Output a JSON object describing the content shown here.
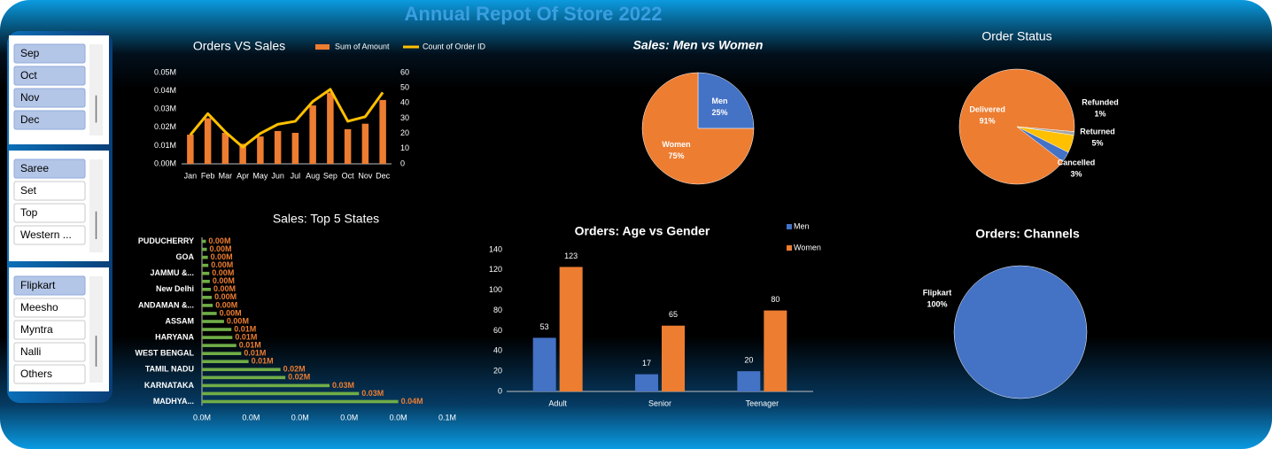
{
  "title": "Annual Repot Of  Store 2022",
  "slicers": [
    {
      "items": [
        {
          "label": "Sep",
          "selected": true
        },
        {
          "label": "Oct",
          "selected": true
        },
        {
          "label": "Nov",
          "selected": true
        },
        {
          "label": "Dec",
          "selected": true
        }
      ]
    },
    {
      "items": [
        {
          "label": "Saree",
          "selected": true
        },
        {
          "label": "Set",
          "selected": false
        },
        {
          "label": "Top",
          "selected": false
        },
        {
          "label": "Western ...",
          "selected": false
        }
      ]
    },
    {
      "items": [
        {
          "label": "Flipkart",
          "selected": true
        },
        {
          "label": "Meesho",
          "selected": false
        },
        {
          "label": "Myntra",
          "selected": false
        },
        {
          "label": "Nalli",
          "selected": false
        },
        {
          "label": "Others",
          "selected": false
        }
      ]
    }
  ],
  "chart_data": [
    {
      "type": "combo",
      "title": "Orders VS Sales",
      "categories": [
        "Jan",
        "Feb",
        "Mar",
        "Apr",
        "May",
        "Jun",
        "Jul",
        "Aug",
        "Sep",
        "Oct",
        "Nov",
        "Dec"
      ],
      "series": [
        {
          "name": "Sum of Amount",
          "type": "bar",
          "color": "#ed7d31",
          "values": [
            16000,
            25000,
            17000,
            11000,
            15000,
            18000,
            17000,
            32000,
            39000,
            19000,
            22000,
            35000
          ]
        },
        {
          "name": "Count of Order ID",
          "type": "line",
          "color": "#ffc000",
          "axis": "y2",
          "values": [
            19,
            33,
            21,
            11,
            20,
            26,
            28,
            41,
            49,
            28,
            31,
            47
          ]
        }
      ],
      "ylim": [
        0,
        50000
      ],
      "yticks": [
        {
          "value": 0,
          "label": "0.00M"
        },
        {
          "value": 10000,
          "label": "0.01M"
        },
        {
          "value": 20000,
          "label": "0.02M"
        },
        {
          "value": 30000,
          "label": "0.03M"
        },
        {
          "value": 40000,
          "label": "0.04M"
        },
        {
          "value": 50000,
          "label": "0.05M"
        }
      ],
      "y2lim": [
        0,
        60
      ],
      "y2ticks": [
        0,
        10,
        20,
        30,
        40,
        50,
        60
      ]
    },
    {
      "type": "pie",
      "title": "Sales: Men vs Women",
      "categories": [
        "Men",
        "Women"
      ],
      "values": [
        25,
        75
      ],
      "value_labels": [
        "25%",
        "75%"
      ],
      "colors": [
        "#4472c4",
        "#ed7d31"
      ]
    },
    {
      "type": "pie",
      "title": "Order Status",
      "categories": [
        "Delivered",
        "Refunded",
        "Returned",
        "Cancelled"
      ],
      "values": [
        91,
        1,
        5,
        3
      ],
      "value_labels": [
        "91%",
        "1%",
        "5%",
        "3%"
      ],
      "colors": [
        "#ed7d31",
        "#a5a5a5",
        "#ffc000",
        "#4472c4"
      ]
    },
    {
      "type": "barh",
      "title": "Sales: Top 5 States",
      "categories": [
        "PUDUCHERRY",
        null,
        "GOA",
        null,
        "JAMMU &...",
        null,
        "New Delhi",
        null,
        "ANDAMAN &...",
        null,
        "ASSAM",
        null,
        "HARYANA",
        null,
        "WEST BENGAL",
        null,
        "TAMIL NADU",
        null,
        "KARNATAKA",
        null,
        "MADHYA..."
      ],
      "values": [
        800,
        1000,
        1200,
        1300,
        1500,
        1600,
        1800,
        2000,
        2200,
        3000,
        4500,
        6000,
        6200,
        7000,
        8000,
        9500,
        16000,
        17000,
        26000,
        32000,
        40000
      ],
      "value_labels": [
        "0.00M",
        "0.00M",
        "0.00M",
        "0.00M",
        "0.00M",
        "0.00M",
        "0.00M",
        "0.00M",
        "0.00M",
        "0.00M",
        "0.00M",
        "0.01M",
        "0.01M",
        "0.01M",
        "0.01M",
        "0.01M",
        "0.02M",
        "0.02M",
        "0.03M",
        "0.03M",
        "0.04M"
      ],
      "color": "#70ad47",
      "xlim": [
        0,
        50000
      ],
      "xticks": [
        {
          "value": 0,
          "label": "0.0M"
        },
        {
          "value": 10000,
          "label": "0.0M"
        },
        {
          "value": 20000,
          "label": "0.0M"
        },
        {
          "value": 30000,
          "label": "0.0M"
        },
        {
          "value": 40000,
          "label": "0.0M"
        },
        {
          "value": 50000,
          "label": "0.1M"
        }
      ]
    },
    {
      "type": "bar",
      "title": "Orders: Age vs Gender",
      "categories": [
        "Adult",
        "Senior",
        "Teenager"
      ],
      "series": [
        {
          "name": "Men",
          "color": "#4472c4",
          "values": [
            53,
            17,
            20
          ]
        },
        {
          "name": "Women",
          "color": "#ed7d31",
          "values": [
            123,
            65,
            80
          ]
        }
      ],
      "ylim": [
        0,
        140
      ],
      "yticks": [
        0,
        20,
        40,
        60,
        80,
        100,
        120,
        140
      ]
    },
    {
      "type": "pie",
      "title": "Orders: Channels",
      "categories": [
        "Flipkart"
      ],
      "values": [
        100
      ],
      "value_labels": [
        "100%"
      ],
      "colors": [
        "#4472c4"
      ]
    }
  ]
}
